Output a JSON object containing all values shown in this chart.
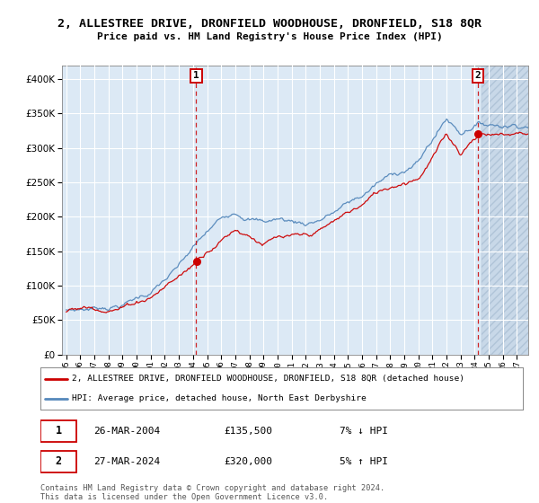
{
  "title": "2, ALLESTREE DRIVE, DRONFIELD WOODHOUSE, DRONFIELD, S18 8QR",
  "subtitle": "Price paid vs. HM Land Registry's House Price Index (HPI)",
  "legend_line1": "2, ALLESTREE DRIVE, DRONFIELD WOODHOUSE, DRONFIELD, S18 8QR (detached house)",
  "legend_line2": "HPI: Average price, detached house, North East Derbyshire",
  "sale1_date": "26-MAR-2004",
  "sale1_price": 135500,
  "sale1_hpi": "7% ↓ HPI",
  "sale2_date": "27-MAR-2024",
  "sale2_price": 320000,
  "sale2_hpi": "5% ↑ HPI",
  "footnote": "Contains HM Land Registry data © Crown copyright and database right 2024.\nThis data is licensed under the Open Government Licence v3.0.",
  "background_color": "#dce9f5",
  "hatch_color": "#c8d8e8",
  "red_line_color": "#cc0000",
  "blue_line_color": "#5588bb",
  "grid_color": "#ffffff"
}
